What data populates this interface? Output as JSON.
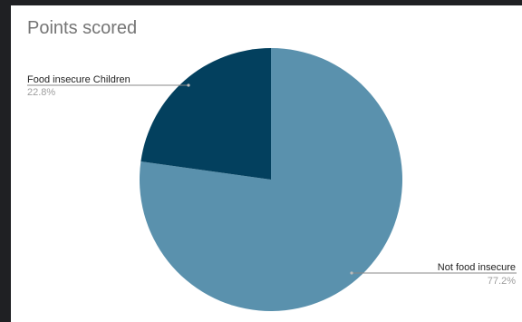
{
  "chart_data": {
    "type": "pie",
    "title": "Points scored",
    "slices": [
      {
        "label": "Not food insecure",
        "value": 77.2,
        "display": "77.2%",
        "color": "#5a91ad"
      },
      {
        "label": "Food insecure Children",
        "value": 22.8,
        "display": "22.8%",
        "color": "#03405e"
      }
    ],
    "legend": "none"
  }
}
